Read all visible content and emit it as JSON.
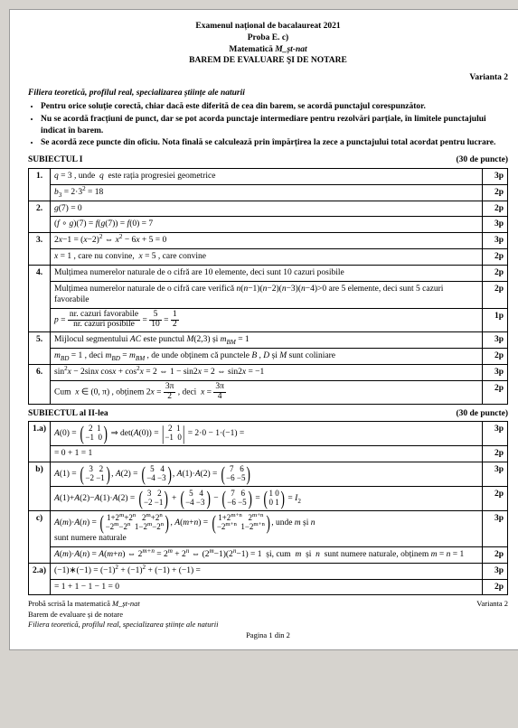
{
  "header": {
    "line1": "Examenul național de bacalaureat 2021",
    "line2": "Proba E. c)",
    "line3_a": "Matematică ",
    "line3_b": "M_șt-nat",
    "line4": "BAREM DE EVALUARE ŞI DE NOTARE",
    "varianta": "Varianta 2"
  },
  "filiera": "Filiera teoretică, profilul real, specializarea științe ale naturii",
  "rules": [
    "Pentru orice soluție corectă, chiar dacă este diferită de cea din barem, se acordă punctajul corespunzător.",
    "Nu se acordă fracțiuni de punct, dar se pot acorda punctaje intermediare pentru rezolvări parțiale, în limitele punctajului indicat în barem.",
    "Se acordă zece puncte din oficiu. Nota finală se calculează prin împărțirea la zece a punctajului total acordat pentru lucrare."
  ],
  "sub1": {
    "title": "SUBIECTUL I",
    "points": "(30 de puncte)",
    "rows": [
      {
        "n": "1.",
        "body": "",
        "pts": "3p"
      },
      {
        "n": "",
        "body": "",
        "pts": "2p"
      },
      {
        "n": "2.",
        "body": "",
        "pts": "2p"
      },
      {
        "n": "",
        "body": "",
        "pts": "3p"
      },
      {
        "n": "3.",
        "body": "",
        "pts": "3p"
      },
      {
        "n": "",
        "body": "",
        "pts": "2p"
      },
      {
        "n": "4.",
        "body": "",
        "pts": "2p"
      },
      {
        "n": "",
        "body": "",
        "pts": "2p"
      },
      {
        "n": "",
        "body": "",
        "pts": "1p"
      },
      {
        "n": "5.",
        "body": "",
        "pts": "3p"
      },
      {
        "n": "",
        "body": "",
        "pts": "2p"
      },
      {
        "n": "6.",
        "body": "",
        "pts": "3p"
      },
      {
        "n": "",
        "body": "",
        "pts": "2p"
      }
    ]
  },
  "sub2": {
    "title": "SUBIECTUL al II-lea",
    "points": "(30 de puncte)",
    "rows": [
      {
        "n": "1.a)",
        "pts": "3p"
      },
      {
        "n": "",
        "pts": "2p"
      },
      {
        "n": "b)",
        "pts": "3p"
      },
      {
        "n": "",
        "pts": "2p"
      },
      {
        "n": "c)",
        "pts": "3p"
      },
      {
        "n": "",
        "pts": "2p"
      },
      {
        "n": "2.a)",
        "pts": "3p"
      },
      {
        "n": "",
        "pts": "2p"
      }
    ]
  },
  "footer": {
    "l1a": "Probă scrisă la matematică ",
    "l1b": "M_șt-nat",
    "l1r": "Varianta 2",
    "l2": "Barem de evaluare și de notare",
    "l3": "Filiera teoretică, profilul real, specializarea științe ale naturii",
    "pagina": "Pagina 1 din 2"
  }
}
